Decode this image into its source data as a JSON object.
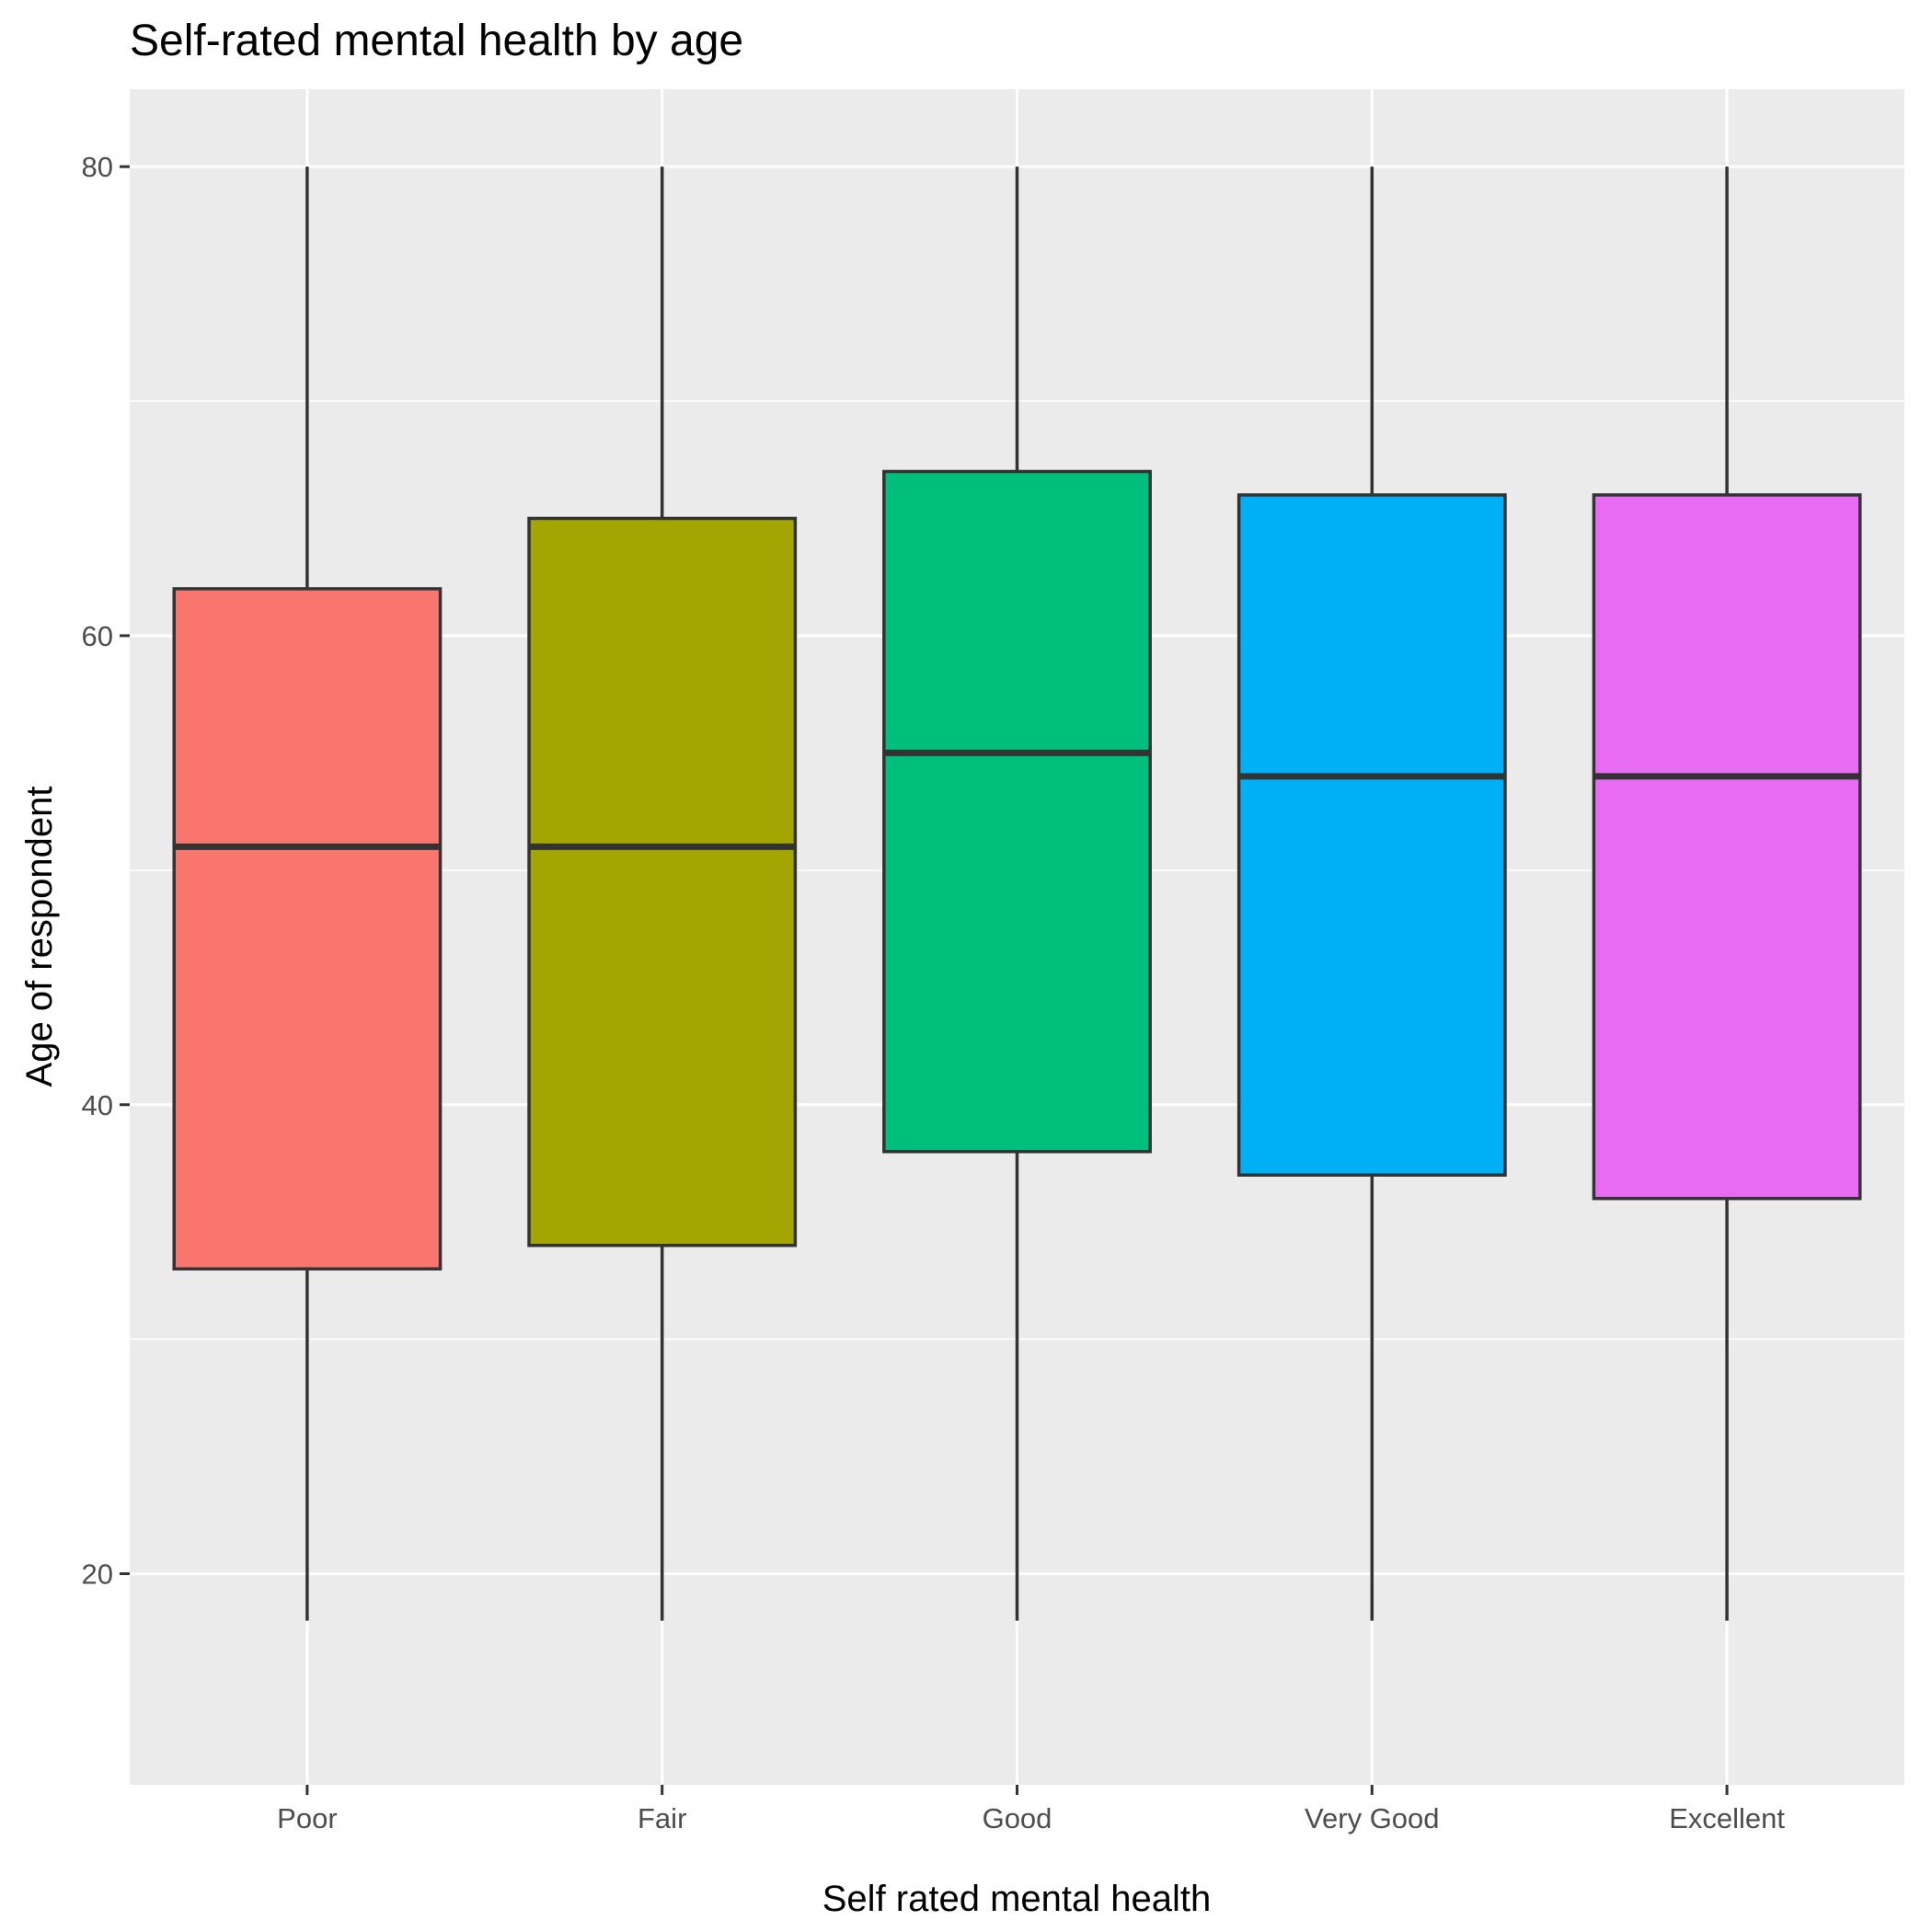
{
  "chart_data": {
    "type": "boxplot",
    "title": "Self-rated mental health by age",
    "xlabel": "Self rated mental health",
    "ylabel": "Age of respondent",
    "categories": [
      "Poor",
      "Fair",
      "Good",
      "Very Good",
      "Excellent"
    ],
    "boxes": [
      {
        "category": "Poor",
        "min": 18,
        "q1": 33,
        "median": 51,
        "q3": 62,
        "max": 80,
        "color": "#F8766D"
      },
      {
        "category": "Fair",
        "min": 18,
        "q1": 34,
        "median": 51,
        "q3": 65,
        "max": 80,
        "color": "#A3A500"
      },
      {
        "category": "Good",
        "min": 18,
        "q1": 38,
        "median": 55,
        "q3": 67,
        "max": 80,
        "color": "#00BF7D"
      },
      {
        "category": "Very Good",
        "min": 18,
        "q1": 37,
        "median": 54,
        "q3": 66,
        "max": 80,
        "color": "#00B0F6"
      },
      {
        "category": "Excellent",
        "min": 18,
        "q1": 36,
        "median": 54,
        "q3": 66,
        "max": 80,
        "color": "#E76BF3"
      }
    ],
    "y_ticks": [
      20,
      40,
      60,
      80
    ],
    "ylim": [
      11.0,
      83.3
    ],
    "grid": true,
    "legend": "none",
    "colors": {
      "panel_background": "#EBEBEB",
      "grid": "#FFFFFF",
      "outline": "#333333"
    }
  }
}
